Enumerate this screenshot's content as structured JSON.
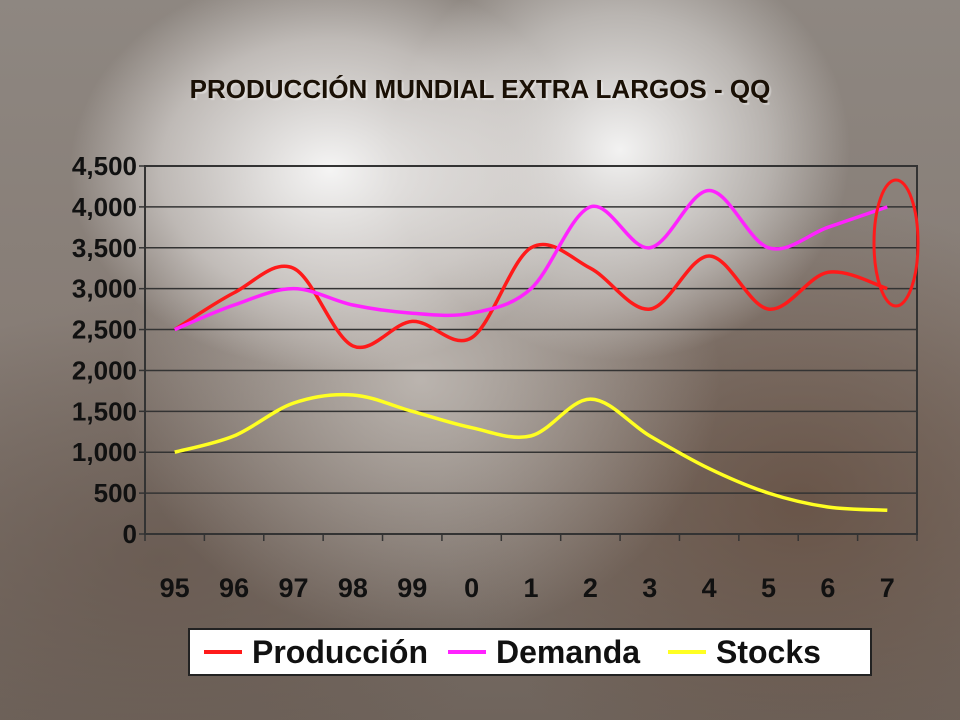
{
  "chart_data": {
    "type": "line",
    "title": "PRODUCCIÓN MUNDIAL EXTRA LARGOS  - QQ",
    "categories": [
      "95",
      "96",
      "97",
      "98",
      "99",
      "0",
      "1",
      "2",
      "3",
      "4",
      "5",
      "6",
      "7"
    ],
    "y_tick_labels": [
      "4,500",
      "4,000",
      "3,500",
      "3,000",
      "2,500",
      "2,000",
      "1,500",
      "1,000",
      "500",
      "0"
    ],
    "ylim": [
      0,
      4500
    ],
    "grid": true,
    "legend_position": "bottom",
    "series": [
      {
        "name": "Producción",
        "color": "#ff1a1a",
        "values": [
          2500,
          2950,
          3250,
          2300,
          2600,
          2400,
          3500,
          3250,
          2750,
          3400,
          2750,
          3200,
          3000
        ]
      },
      {
        "name": "Demanda",
        "color": "#ff22ff",
        "values": [
          2500,
          2800,
          3000,
          2800,
          2700,
          2700,
          3000,
          4000,
          3500,
          4200,
          3500,
          3750,
          4000
        ]
      },
      {
        "name": "Stocks",
        "color": "#ffff22",
        "values": [
          1000,
          1200,
          1600,
          1700,
          1500,
          1300,
          1200,
          1650,
          1200,
          800,
          500,
          330,
          290
        ]
      }
    ]
  },
  "annotation": {
    "type": "ellipse",
    "color": "#ff1a1a",
    "target_category": "7"
  }
}
